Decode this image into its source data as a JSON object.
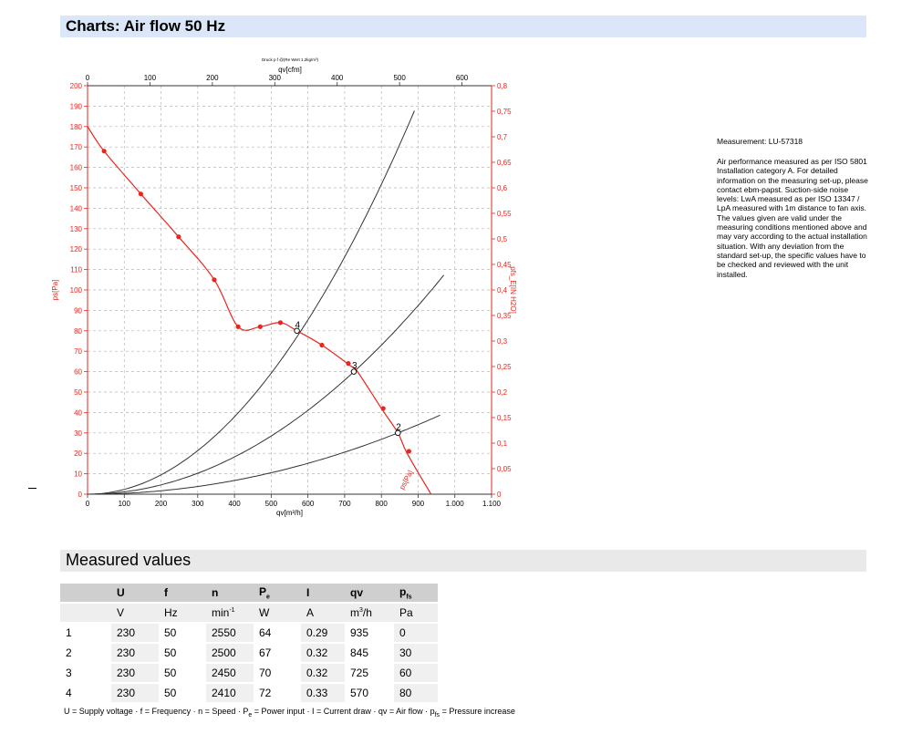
{
  "header": {
    "title": "Charts: Air flow 50 Hz"
  },
  "chart_data": {
    "type": "line",
    "top_caption": "Druck p f @(Re Wert 1,2kg/m³)",
    "x_bottom": {
      "label": "qv[m³/h]",
      "range": [
        0,
        1100
      ],
      "tick_labels": [
        "0",
        "100",
        "200",
        "300",
        "400",
        "500",
        "600",
        "700",
        "800",
        "900",
        "1.000",
        "1.100"
      ]
    },
    "x_top": {
      "label": "qv[cfm]",
      "range": [
        0,
        647.4
      ],
      "tick_labels": [
        "0",
        "100",
        "200",
        "300",
        "400",
        "500",
        "600"
      ]
    },
    "y_left": {
      "label": "ps[Pa]",
      "range": [
        0,
        200
      ],
      "tick_labels": [
        "0",
        "10",
        "20",
        "30",
        "40",
        "50",
        "60",
        "70",
        "80",
        "90",
        "100",
        "110",
        "120",
        "130",
        "140",
        "150",
        "160",
        "170",
        "180",
        "190",
        "200"
      ]
    },
    "y_right": {
      "label": "pfs_E[IN H2O]",
      "range": [
        0,
        0.8
      ],
      "tick_labels": [
        "0",
        "0,05",
        "0,1",
        "0,15",
        "0,2",
        "0,25",
        "0,3",
        "0,35",
        "0,4",
        "0,45",
        "0,5",
        "0,55",
        "0,6",
        "0,65",
        "0,7",
        "0,75",
        "0,8"
      ]
    },
    "grid": true,
    "fan_curve": {
      "label": "ps[Pa]",
      "color": "#e8261f",
      "points": [
        [
          0,
          180
        ],
        [
          45,
          168
        ],
        [
          145,
          147
        ],
        [
          248,
          126
        ],
        [
          345,
          105
        ],
        [
          410,
          82
        ],
        [
          470,
          82
        ],
        [
          525,
          84
        ],
        [
          570,
          80
        ],
        [
          638,
          73
        ],
        [
          715,
          63
        ],
        [
          735,
          60
        ],
        [
          800,
          42
        ],
        [
          845,
          30
        ],
        [
          870,
          20
        ],
        [
          935,
          0
        ]
      ],
      "markers": [
        [
          45,
          168
        ],
        [
          145,
          147
        ],
        [
          248,
          126
        ],
        [
          345,
          105
        ],
        [
          410,
          82
        ],
        [
          470,
          82
        ],
        [
          525,
          84
        ],
        [
          638,
          73
        ],
        [
          710,
          64
        ],
        [
          805,
          42
        ],
        [
          875,
          21
        ]
      ]
    },
    "system_curves": [
      {
        "k": 0.000237,
        "x_end": 890,
        "color": "#333333"
      },
      {
        "k": 0.000114,
        "x_end": 970,
        "color": "#333333"
      },
      {
        "k": 4.2e-05,
        "x_end": 960,
        "color": "#333333"
      }
    ],
    "operating_points": [
      {
        "label": "2",
        "x": 845,
        "y": 30
      },
      {
        "label": "3",
        "x": 725,
        "y": 60
      },
      {
        "label": "4",
        "x": 570,
        "y": 80
      }
    ]
  },
  "side_info": {
    "measurement": "Measurement: LU-57318",
    "lines": [
      "Air performance measured as per ISO 5801",
      "Installation category A. For detailed",
      "information on the measuring set-up, please",
      "contact ebm-papst. Suction-side noise",
      "levels: LwA measured as per ISO 13347 /",
      "LpA measured with 1m distance to fan axis.",
      "The values given are valid under the",
      "measuring conditions mentioned above and",
      "may vary according to the actual installation",
      "situation. With any deviation from the",
      "standard set-up, the specific values have to",
      "be checked and reviewed with the unit",
      "installed."
    ]
  },
  "measured": {
    "title": "Measured values",
    "headers": {
      "U": "U",
      "f": "f",
      "n": "n",
      "Pe_base": "P",
      "Pe_sub": "e",
      "I": "I",
      "qv": "qv",
      "pfs_base": "p",
      "pfs_sub": "fs"
    },
    "units": {
      "U": "V",
      "f": "Hz",
      "n_base": "min",
      "n_sup": "-1",
      "Pe": "W",
      "I": "A",
      "qv_base": "m",
      "qv_sup": "3",
      "qv_tail": "/h",
      "pfs": "Pa"
    },
    "rows": [
      [
        "1",
        "230",
        "50",
        "2550",
        "64",
        "0.29",
        "935",
        "0"
      ],
      [
        "2",
        "230",
        "50",
        "2500",
        "67",
        "0.32",
        "845",
        "30"
      ],
      [
        "3",
        "230",
        "50",
        "2450",
        "70",
        "0.32",
        "725",
        "60"
      ],
      [
        "4",
        "230",
        "50",
        "2410",
        "72",
        "0.33",
        "570",
        "80"
      ]
    ],
    "legend": {
      "part1": "U = Supply voltage · f = Frequency · n = Speed · P",
      "sub1": "e",
      "part2": " = Power input · I = Current draw · qv = Air flow · p",
      "sub2": "fs",
      "part3": " = Pressure increase"
    }
  }
}
